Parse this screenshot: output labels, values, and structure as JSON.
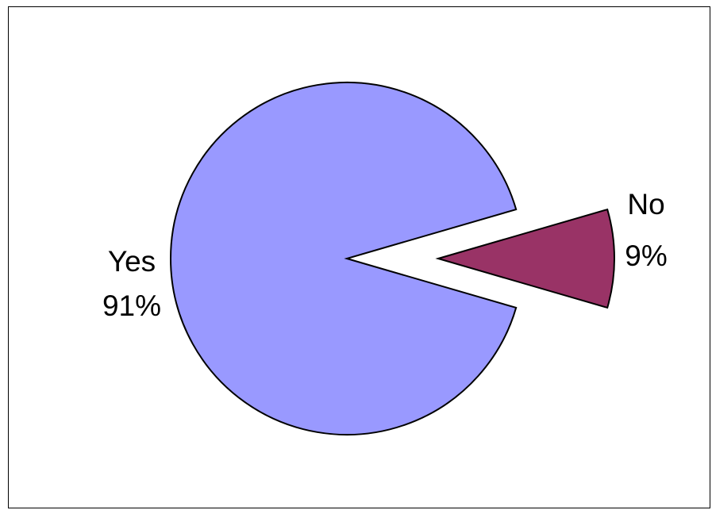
{
  "chart_data": {
    "type": "pie",
    "exploded": true,
    "slices": [
      {
        "label": "Yes",
        "percent_label": "91%",
        "value": 91,
        "color": "#9999ff"
      },
      {
        "label": "No",
        "percent_label": "9%",
        "value": 9,
        "color": "#993366"
      }
    ],
    "border_color": "#000000"
  }
}
